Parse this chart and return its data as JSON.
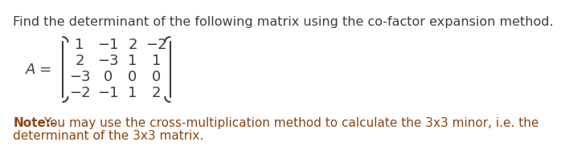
{
  "title": "Find the determinant of the following matrix using the co-factor expansion method.",
  "title_color": "#3d3d3d",
  "title_fontsize": 11.5,
  "matrix_label": "A =",
  "matrix": [
    [
      "1",
      "−1",
      "2",
      "−2"
    ],
    [
      "2",
      "−3",
      "1",
      "1"
    ],
    [
      "−3",
      "0",
      "0",
      "0"
    ],
    [
      "−2",
      "−1",
      "1",
      "2"
    ]
  ],
  "note_bold": "Note:-",
  "note_text": " You may use the cross-multiplication method to calculate the 3x3 minor, i.e. the",
  "note_text2": "determinant of the 3x3 matrix.",
  "note_color": "#8B4513",
  "note_fontsize": 11.0,
  "bg_color": "#ffffff",
  "matrix_fontsize": 13.0,
  "label_fontsize": 13.0
}
